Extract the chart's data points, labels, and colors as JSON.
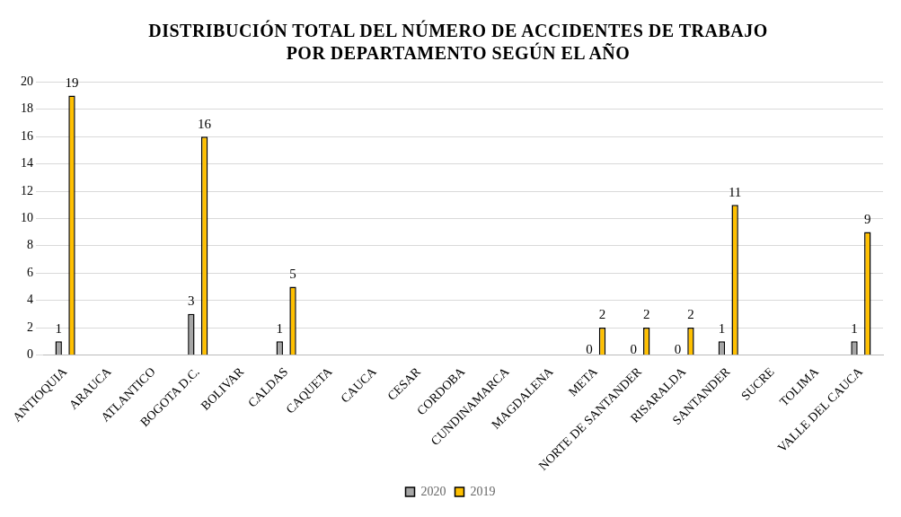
{
  "chart_data": {
    "type": "bar",
    "title": "DISTRIBUCIÓN TOTAL DEL NÚMERO DE ACCIDENTES DE TRABAJO POR DEPARTAMENTO SEGÚN EL AÑO",
    "categories": [
      "ANTIOQUIA",
      "ARAUCA",
      "ATLANTICO",
      "BOGOTA D.C.",
      "BOLIVAR",
      "CALDAS",
      "CAQUETA",
      "CAUCA",
      "CESAR",
      "CORDOBA",
      "CUNDINAMARCA",
      "MAGDALENA",
      "META",
      "NORTE DE SANTANDER",
      "RISARALDA",
      "SANTANDER",
      "SUCRE",
      "TOLIMA",
      "VALLE DEL CAUCA"
    ],
    "series": [
      {
        "name": "2020",
        "color": "#a6a6a6",
        "values": [
          1,
          null,
          null,
          3,
          null,
          1,
          null,
          null,
          null,
          null,
          null,
          null,
          0,
          0,
          0,
          1,
          null,
          null,
          1
        ]
      },
      {
        "name": "2019",
        "color": "#ffc000",
        "values": [
          19,
          null,
          null,
          16,
          null,
          5,
          null,
          null,
          null,
          null,
          null,
          null,
          2,
          2,
          2,
          11,
          null,
          null,
          9
        ]
      }
    ],
    "ylim": [
      0,
      20
    ],
    "yticks": [
      0,
      2,
      4,
      6,
      8,
      10,
      12,
      14,
      16,
      18,
      20
    ],
    "grid": "y",
    "legend": "bottom",
    "data_labels": true
  }
}
